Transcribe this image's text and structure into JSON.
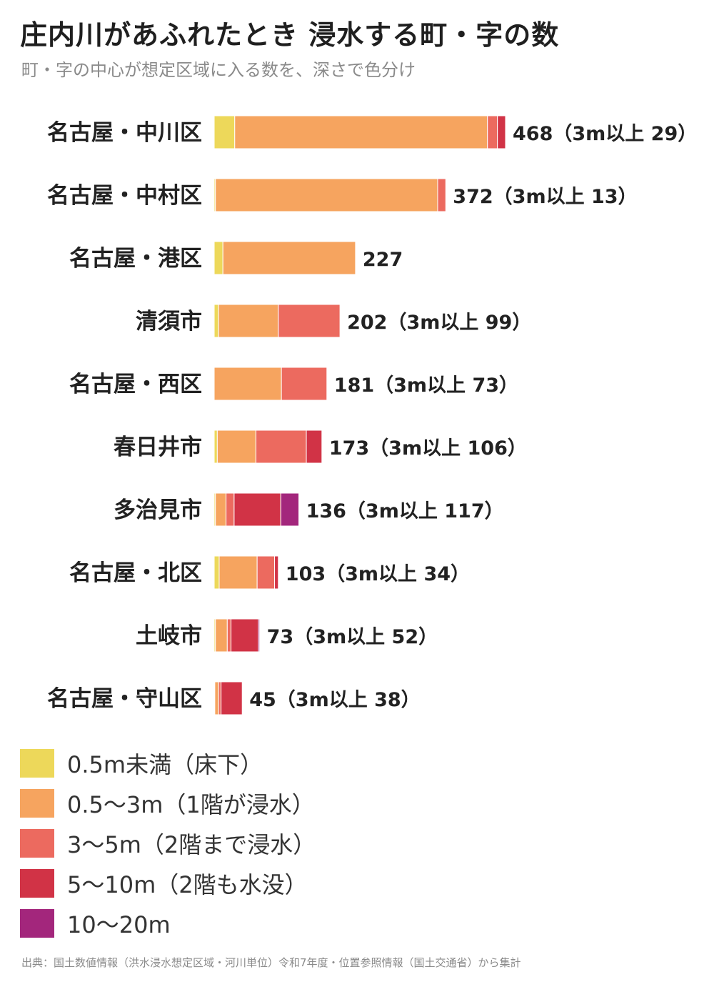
{
  "header": {
    "title": "庄内川があふれたとき 浸水する町・字の数",
    "subtitle": "町・字の中心が想定区域に入る数を、深さで色分け"
  },
  "chart_data": {
    "type": "bar",
    "orientation": "horizontal",
    "stacked": true,
    "title": "庄内川があふれたとき 浸水する町・字の数",
    "subtitle": "町・字の中心が想定区域に入る数を、深さで色分け",
    "categories": [
      "名古屋・中川区",
      "名古屋・中村区",
      "名古屋・港区",
      "清須市",
      "名古屋・西区",
      "春日井市",
      "多治見市",
      "名古屋・北区",
      "土岐市",
      "名古屋・守山区"
    ],
    "series": [
      {
        "name": "0.5m未満（床下）",
        "color": "#edd85a",
        "values": [
          33,
          2,
          14,
          7,
          0,
          5,
          2,
          8,
          2,
          1
        ]
      },
      {
        "name": "0.5〜3m（1階が浸水）",
        "color": "#f6a45f",
        "values": [
          406,
          357,
          213,
          96,
          108,
          62,
          17,
          61,
          19,
          6
        ]
      },
      {
        "name": "3〜5m（2階まで浸水）",
        "color": "#ec6a5f",
        "values": [
          16,
          13,
          0,
          99,
          73,
          81,
          13,
          28,
          6,
          4
        ]
      },
      {
        "name": "5〜10m（2階も水没）",
        "color": "#d13346",
        "values": [
          13,
          0,
          0,
          0,
          0,
          25,
          75,
          6,
          44,
          34
        ]
      },
      {
        "name": "10〜20m",
        "color": "#a3267c",
        "values": [
          0,
          0,
          0,
          0,
          0,
          0,
          29,
          0,
          2,
          0
        ]
      }
    ],
    "data_labels": [
      "468（3m以上 29）",
      "372（3m以上 13）",
      "227",
      "202（3m以上 99）",
      "181（3m以上 73）",
      "173（3m以上 106）",
      "136（3m以上 117）",
      "103（3m以上 34）",
      "73（3m以上 52）",
      "45（3m以上 38）"
    ],
    "xlim": [
      0,
      468
    ],
    "grid": false,
    "legend_placement": "bottom-left"
  },
  "legend": {
    "items": [
      {
        "label": "0.5m未満（床下）",
        "color": "#edd85a"
      },
      {
        "label": "0.5〜3m（1階が浸水）",
        "color": "#f6a45f"
      },
      {
        "label": "3〜5m（2階まで浸水）",
        "color": "#ec6a5f"
      },
      {
        "label": "5〜10m（2階も水没）",
        "color": "#d13346"
      },
      {
        "label": "10〜20m",
        "color": "#a3267c"
      }
    ]
  },
  "footer": {
    "source": "出典：国土数値情報（洪水浸水想定区域・河川単位）令和7年度・位置参照情報（国土交通省）から集計"
  }
}
